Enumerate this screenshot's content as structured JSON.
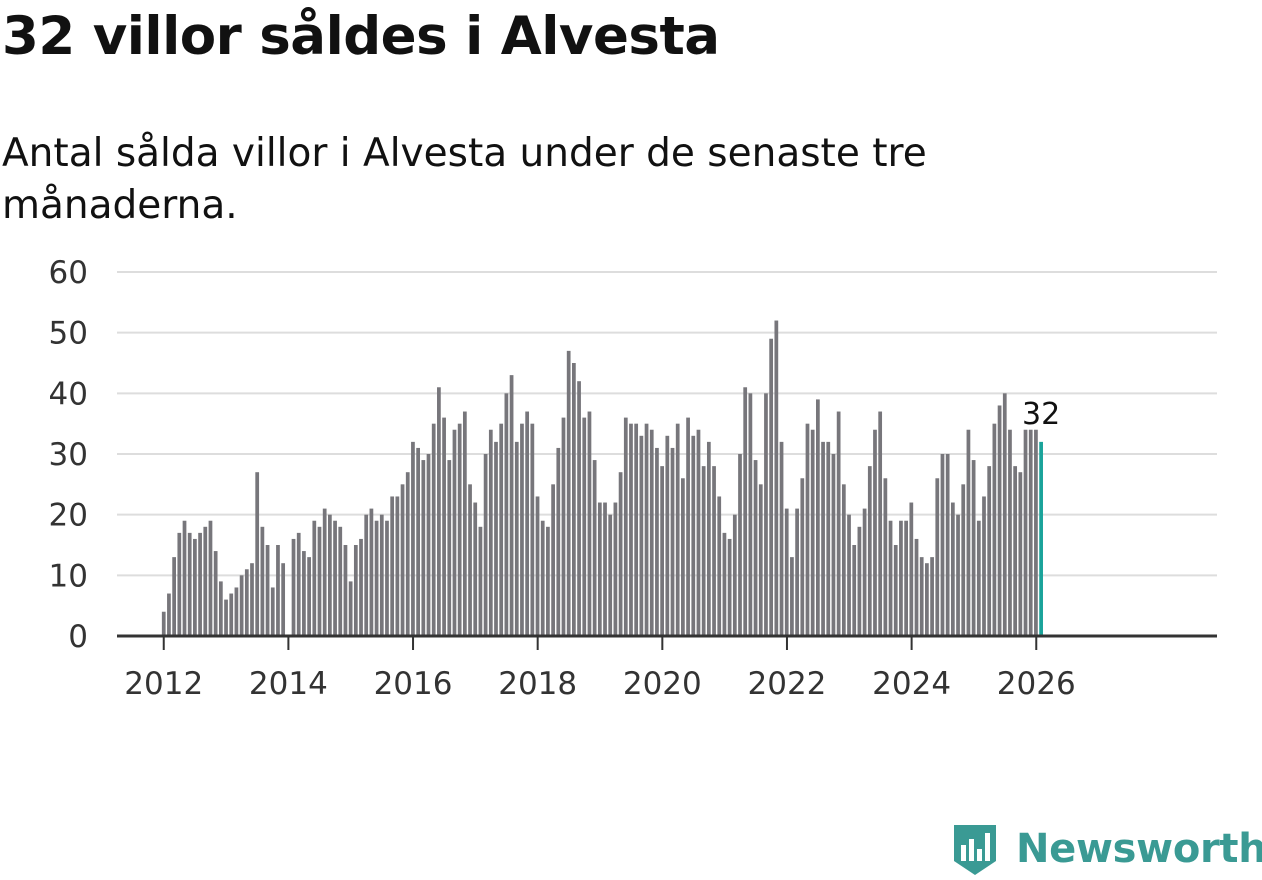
{
  "title": "32 villor såldes i Alvesta",
  "subtitle": "Antal sålda villor i Alvesta under de senaste tre månaderna.",
  "brand": {
    "name": "Newsworthy",
    "icon": "newsworthy-logo-icon",
    "color": "#3a9a94"
  },
  "colors": {
    "bar": "#77767b",
    "highlight": "#1aa39a",
    "grid": "#dddddd",
    "axis": "#333333"
  },
  "chart_data": {
    "type": "bar",
    "title": "32 villor såldes i Alvesta",
    "xlabel": "",
    "ylabel": "",
    "ylim": [
      0,
      60
    ],
    "yticks": [
      "0",
      "10",
      "20",
      "30",
      "40",
      "50",
      "60"
    ],
    "xticks": [
      "2012",
      "2014",
      "2016",
      "2018",
      "2020",
      "2022",
      "2024",
      "2026"
    ],
    "xrange": [
      2011.25,
      2028.9
    ],
    "first_period": 2012.0,
    "period_step": 0.0833,
    "grid": true,
    "highlight_label": "32",
    "values": [
      4,
      7,
      13,
      17,
      19,
      17,
      16,
      17,
      18,
      19,
      14,
      9,
      6,
      7,
      8,
      10,
      11,
      12,
      27,
      18,
      15,
      8,
      15,
      12,
      0,
      16,
      17,
      14,
      13,
      19,
      18,
      21,
      20,
      19,
      18,
      15,
      9,
      15,
      16,
      20,
      21,
      19,
      20,
      19,
      23,
      23,
      25,
      27,
      32,
      31,
      29,
      30,
      35,
      41,
      36,
      29,
      34,
      35,
      37,
      25,
      22,
      18,
      30,
      34,
      32,
      35,
      40,
      43,
      32,
      35,
      37,
      35,
      23,
      19,
      18,
      25,
      31,
      36,
      47,
      45,
      42,
      36,
      37,
      29,
      22,
      22,
      20,
      22,
      27,
      36,
      35,
      35,
      33,
      35,
      34,
      31,
      28,
      33,
      31,
      35,
      26,
      36,
      33,
      34,
      28,
      32,
      28,
      23,
      17,
      16,
      20,
      30,
      41,
      40,
      29,
      25,
      40,
      49,
      52,
      32,
      21,
      13,
      21,
      26,
      35,
      34,
      39,
      32,
      32,
      30,
      37,
      25,
      20,
      15,
      18,
      21,
      28,
      34,
      37,
      26,
      19,
      15,
      19,
      19,
      22,
      16,
      13,
      12,
      13,
      26,
      30,
      30,
      22,
      20,
      25,
      34,
      29,
      19,
      23,
      28,
      35,
      38,
      40,
      34,
      28,
      27,
      34,
      34,
      34,
      32
    ]
  }
}
